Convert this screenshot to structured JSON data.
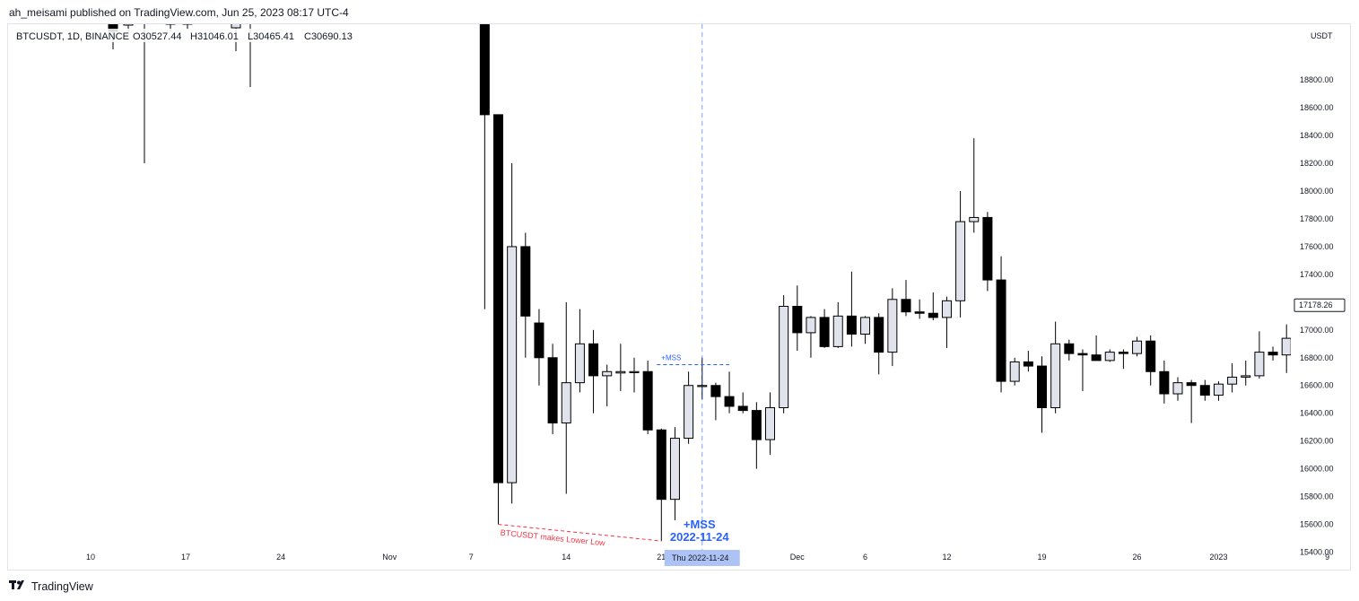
{
  "header": {
    "publisher_line": "ah_meisami published on TradingView.com, Jun 25, 2023 08:17 UTC-4"
  },
  "brand": {
    "logo_icon": "tradingview-logo-icon",
    "name": "TradingView"
  },
  "colors": {
    "bull_fill": "#e0e3eb",
    "bear_fill": "#000000",
    "candle_outline": "#000000",
    "annotation_red": "#f23645",
    "annotation_blue": "#2962ff",
    "highlight": "#aec3f5"
  },
  "chart_data": {
    "type": "candlestick",
    "symbol_legend": {
      "symbol": "BTCUSDT, 1D, BINANCE",
      "open": "O30527.44",
      "high": "H31046.01",
      "low": "L30465.41",
      "close": "C30690.13"
    },
    "y_axis": {
      "unit_label": "USDT",
      "ticks": [
        "18800.00",
        "18600.00",
        "18400.00",
        "18200.00",
        "18000.00",
        "17800.00",
        "17600.00",
        "17400.00",
        "17200.00",
        "17000.00",
        "16800.00",
        "16600.00",
        "16400.00",
        "16200.00",
        "16000.00",
        "15800.00",
        "15600.00",
        "15400.00"
      ],
      "range": [
        15250,
        18860
      ]
    },
    "x_axis": {
      "ticks": [
        {
          "label": "10",
          "date": "2022-10-10"
        },
        {
          "label": "17",
          "date": "2022-10-17"
        },
        {
          "label": "24",
          "date": "2022-10-24"
        },
        {
          "label": "Nov",
          "date": "2022-11-01"
        },
        {
          "label": "7",
          "date": "2022-11-07"
        },
        {
          "label": "14",
          "date": "2022-11-14"
        },
        {
          "label": "21",
          "date": "2022-11-21"
        },
        {
          "label": "Dec",
          "date": "2022-12-01"
        },
        {
          "label": "6",
          "date": "2022-12-06"
        },
        {
          "label": "12",
          "date": "2022-12-12"
        },
        {
          "label": "19",
          "date": "2022-12-19"
        },
        {
          "label": "26",
          "date": "2022-12-26"
        },
        {
          "label": "2023",
          "date": "2023-01-01"
        },
        {
          "label": "9",
          "date": "2023-01-09"
        }
      ],
      "cursor_label": "Thu 2022-11-24"
    },
    "last_price": "17178.26",
    "candles": [
      {
        "date": "2022-11-08",
        "open": 19400,
        "high": 19900,
        "low": 17150,
        "close": 18550
      },
      {
        "date": "2022-11-09",
        "open": 18550,
        "high": 18550,
        "low": 15600,
        "close": 15900
      },
      {
        "date": "2022-11-10",
        "open": 15900,
        "high": 18200,
        "low": 15750,
        "close": 17600
      },
      {
        "date": "2022-11-11",
        "open": 17600,
        "high": 17700,
        "low": 16800,
        "close": 17100
      },
      {
        "date": "2022-11-12",
        "open": 17050,
        "high": 17150,
        "low": 16600,
        "close": 16800
      },
      {
        "date": "2022-11-13",
        "open": 16800,
        "high": 16900,
        "low": 16250,
        "close": 16330
      },
      {
        "date": "2022-11-14",
        "open": 16330,
        "high": 17200,
        "low": 15820,
        "close": 16620
      },
      {
        "date": "2022-11-15",
        "open": 16620,
        "high": 17150,
        "low": 16550,
        "close": 16900
      },
      {
        "date": "2022-11-16",
        "open": 16900,
        "high": 17000,
        "low": 16400,
        "close": 16670
      },
      {
        "date": "2022-11-17",
        "open": 16670,
        "high": 16750,
        "low": 16450,
        "close": 16700
      },
      {
        "date": "2022-11-18",
        "open": 16690,
        "high": 16900,
        "low": 16560,
        "close": 16700
      },
      {
        "date": "2022-11-19",
        "open": 16700,
        "high": 16800,
        "low": 16550,
        "close": 16700
      },
      {
        "date": "2022-11-20",
        "open": 16700,
        "high": 16780,
        "low": 16250,
        "close": 16280
      },
      {
        "date": "2022-11-21",
        "open": 16280,
        "high": 16290,
        "low": 15480,
        "close": 15780
      },
      {
        "date": "2022-11-22",
        "open": 15780,
        "high": 16300,
        "low": 15630,
        "close": 16220
      },
      {
        "date": "2022-11-23",
        "open": 16220,
        "high": 16700,
        "low": 16180,
        "close": 16600
      },
      {
        "date": "2022-11-24",
        "open": 16600,
        "high": 16800,
        "low": 16500,
        "close": 16600
      },
      {
        "date": "2022-11-25",
        "open": 16600,
        "high": 16620,
        "low": 16350,
        "close": 16520
      },
      {
        "date": "2022-11-26",
        "open": 16520,
        "high": 16700,
        "low": 16400,
        "close": 16450
      },
      {
        "date": "2022-11-27",
        "open": 16450,
        "high": 16550,
        "low": 16400,
        "close": 16420
      },
      {
        "date": "2022-11-28",
        "open": 16420,
        "high": 16480,
        "low": 16000,
        "close": 16210
      },
      {
        "date": "2022-11-29",
        "open": 16210,
        "high": 16550,
        "low": 16100,
        "close": 16440
      },
      {
        "date": "2022-11-30",
        "open": 16440,
        "high": 17250,
        "low": 16400,
        "close": 17170
      },
      {
        "date": "2022-12-01",
        "open": 17170,
        "high": 17320,
        "low": 16850,
        "close": 16980
      },
      {
        "date": "2022-12-02",
        "open": 16980,
        "high": 17100,
        "low": 16800,
        "close": 17090
      },
      {
        "date": "2022-12-03",
        "open": 17090,
        "high": 17150,
        "low": 16870,
        "close": 16880
      },
      {
        "date": "2022-12-04",
        "open": 16880,
        "high": 17200,
        "low": 16870,
        "close": 17100
      },
      {
        "date": "2022-12-05",
        "open": 17100,
        "high": 17420,
        "low": 16880,
        "close": 16970
      },
      {
        "date": "2022-12-06",
        "open": 16970,
        "high": 17100,
        "low": 16900,
        "close": 17090
      },
      {
        "date": "2022-12-07",
        "open": 17090,
        "high": 17120,
        "low": 16680,
        "close": 16840
      },
      {
        "date": "2022-12-08",
        "open": 16840,
        "high": 17300,
        "low": 16740,
        "close": 17220
      },
      {
        "date": "2022-12-09",
        "open": 17220,
        "high": 17360,
        "low": 17100,
        "close": 17130
      },
      {
        "date": "2022-12-10",
        "open": 17130,
        "high": 17220,
        "low": 17080,
        "close": 17120
      },
      {
        "date": "2022-12-11",
        "open": 17120,
        "high": 17270,
        "low": 17070,
        "close": 17090
      },
      {
        "date": "2022-12-12",
        "open": 17090,
        "high": 17240,
        "low": 16870,
        "close": 17210
      },
      {
        "date": "2022-12-13",
        "open": 17210,
        "high": 18000,
        "low": 17090,
        "close": 17780
      },
      {
        "date": "2022-12-14",
        "open": 17780,
        "high": 18380,
        "low": 17700,
        "close": 17810
      },
      {
        "date": "2022-12-15",
        "open": 17810,
        "high": 17850,
        "low": 17280,
        "close": 17360
      },
      {
        "date": "2022-12-16",
        "open": 17360,
        "high": 17530,
        "low": 16550,
        "close": 16630
      },
      {
        "date": "2022-12-17",
        "open": 16630,
        "high": 16800,
        "low": 16600,
        "close": 16770
      },
      {
        "date": "2022-12-18",
        "open": 16770,
        "high": 16850,
        "low": 16700,
        "close": 16740
      },
      {
        "date": "2022-12-19",
        "open": 16740,
        "high": 16810,
        "low": 16260,
        "close": 16440
      },
      {
        "date": "2022-12-20",
        "open": 16440,
        "high": 17060,
        "low": 16400,
        "close": 16900
      },
      {
        "date": "2022-12-21",
        "open": 16900,
        "high": 16930,
        "low": 16780,
        "close": 16830
      },
      {
        "date": "2022-12-22",
        "open": 16830,
        "high": 16860,
        "low": 16560,
        "close": 16820
      },
      {
        "date": "2022-12-23",
        "open": 16820,
        "high": 16960,
        "low": 16780,
        "close": 16780
      },
      {
        "date": "2022-12-24",
        "open": 16780,
        "high": 16860,
        "low": 16770,
        "close": 16840
      },
      {
        "date": "2022-12-25",
        "open": 16840,
        "high": 16860,
        "low": 16720,
        "close": 16830
      },
      {
        "date": "2022-12-26",
        "open": 16830,
        "high": 16950,
        "low": 16810,
        "close": 16920
      },
      {
        "date": "2022-12-27",
        "open": 16920,
        "high": 16960,
        "low": 16600,
        "close": 16700
      },
      {
        "date": "2022-12-28",
        "open": 16700,
        "high": 16780,
        "low": 16470,
        "close": 16540
      },
      {
        "date": "2022-12-29",
        "open": 16540,
        "high": 16660,
        "low": 16490,
        "close": 16620
      },
      {
        "date": "2022-12-30",
        "open": 16620,
        "high": 16640,
        "low": 16330,
        "close": 16600
      },
      {
        "date": "2022-12-31",
        "open": 16600,
        "high": 16640,
        "low": 16490,
        "close": 16530
      },
      {
        "date": "2023-01-01",
        "open": 16530,
        "high": 16630,
        "low": 16490,
        "close": 16610
      },
      {
        "date": "2023-01-02",
        "open": 16610,
        "high": 16760,
        "low": 16550,
        "close": 16660
      },
      {
        "date": "2023-01-03",
        "open": 16660,
        "high": 16780,
        "low": 16600,
        "close": 16670
      },
      {
        "date": "2023-01-04",
        "open": 16670,
        "high": 16990,
        "low": 16650,
        "close": 16840
      },
      {
        "date": "2023-01-05",
        "open": 16840,
        "high": 16880,
        "low": 16780,
        "close": 16820
      },
      {
        "date": "2023-01-06",
        "open": 16820,
        "high": 17040,
        "low": 16690,
        "close": 16940
      },
      {
        "date": "2023-01-07",
        "open": 16940,
        "high": 16980,
        "low": 16910,
        "close": 16930
      },
      {
        "date": "2023-01-08",
        "open": 16930,
        "high": 17180,
        "low": 16910,
        "close": 17120
      },
      {
        "date": "2023-01-09",
        "open": 17120,
        "high": 17400,
        "low": 17100,
        "close": 17180
      }
    ],
    "annotations": {
      "lower_low_label": "BTCUSDT makes Lower Low",
      "mss_small_label": "+MSS",
      "mss_big_label": "+MSS",
      "mss_date": "2022-11-24",
      "mss_level": 16750,
      "lower_low_from": {
        "date": "2022-11-09",
        "price": 15600
      },
      "lower_low_to": {
        "date": "2022-11-21",
        "price": 15480
      }
    }
  }
}
